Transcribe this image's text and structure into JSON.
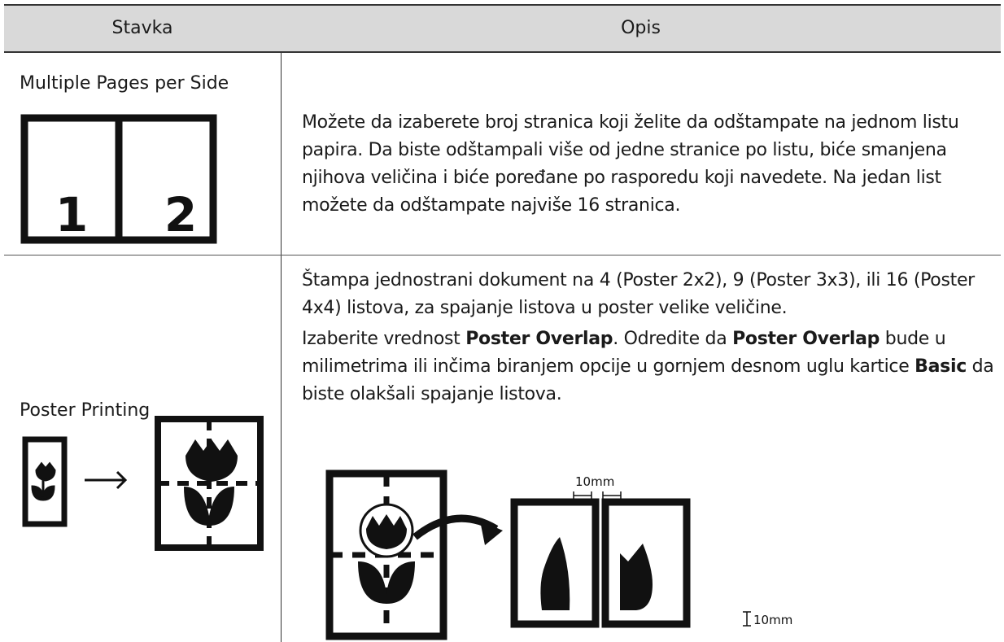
{
  "table": {
    "header": [
      "Stavka",
      "Opis"
    ],
    "rows": [
      {
        "item": "Multiple Pages per Side",
        "icon_labels": [
          "1",
          "2"
        ],
        "paragraphs": [
          [
            {
              "text": "Možete da izaberete broj stranica koji želite da odštampate na jednom listu papira. Da biste odštampali više od jedne stranice po listu, biće smanjena njihova veličina i biće poređane po rasporedu koji navedete. Na jedan list možete da odštampate najviše 16 stranica.",
              "bold": false
            }
          ]
        ]
      },
      {
        "item": "Poster Printing",
        "paragraphs": [
          [
            {
              "text": "Štampa jednostrani dokument na 4 (Poster 2x2), 9 (Poster 3x3), ili 16 (Poster 4x4) listova, za spajanje listova u poster velike veličine.",
              "bold": false
            }
          ],
          [
            {
              "text": "Izaberite vrednost ",
              "bold": false
            },
            {
              "text": "Poster Overlap",
              "bold": true
            },
            {
              "text": ". Odredite da ",
              "bold": false
            },
            {
              "text": "Poster Overlap",
              "bold": true
            },
            {
              "text": " bude u milimetrima ili inčima biranjem opcije u gornjem desnom uglu kartice ",
              "bold": false
            },
            {
              "text": "Basic",
              "bold": true
            },
            {
              "text": " da biste olakšali spajanje listova.",
              "bold": false
            }
          ]
        ],
        "figure_labels": [
          "10mm",
          "10mm"
        ]
      }
    ]
  }
}
